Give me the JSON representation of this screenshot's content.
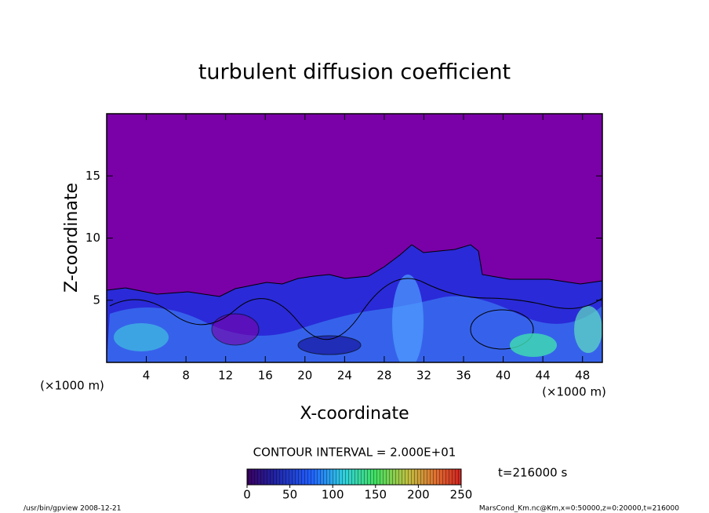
{
  "chart_data": {
    "type": "contour",
    "title": "turbulent diffusion coefficient",
    "x_label": "X-coordinate",
    "y_label": "Z-coordinate",
    "x_unit_label": "(×1000 m)",
    "y_unit_label": "(×1000 m)",
    "xlim": [
      0,
      50
    ],
    "xticks": [
      4,
      8,
      12,
      16,
      20,
      24,
      28,
      32,
      36,
      40,
      44,
      48
    ],
    "ylim": [
      0,
      20
    ],
    "yticks": [
      5,
      10,
      15
    ],
    "contour_interval": "CONTOUR INTERVAL = 2.000E+01",
    "time_label": "t=216000 s",
    "colorbar": {
      "lim": [
        0,
        250
      ],
      "ticks": [
        0,
        50,
        100,
        150,
        200,
        250
      ]
    },
    "footer_left": "/usr/bin/gpview   2008-12-21",
    "footer_right": "MarsCond_Km.nc@Km,x=0:50000,z=0:20000,t=216000"
  }
}
